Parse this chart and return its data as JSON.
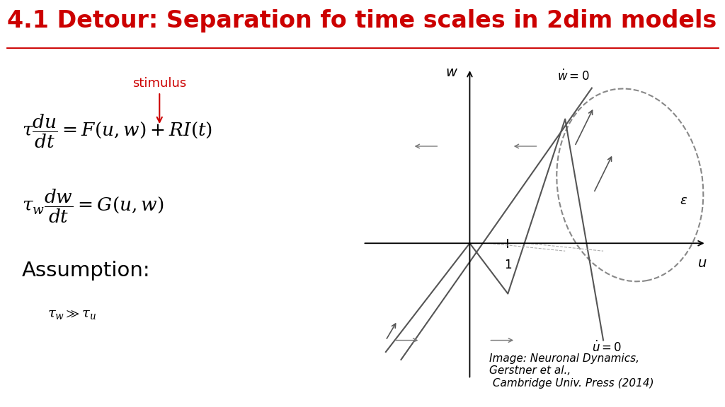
{
  "title": "4.1 Detour: Separation fo time scales in 2dim models",
  "title_color": "#cc0000",
  "title_fontsize": 24,
  "background_color": "white",
  "stimulus_label": "stimulus",
  "stimulus_color": "#cc0000",
  "citation": "Image: Neuronal Dynamics,\nGerstner et al.,\n Cambridge Univ. Press (2014)"
}
